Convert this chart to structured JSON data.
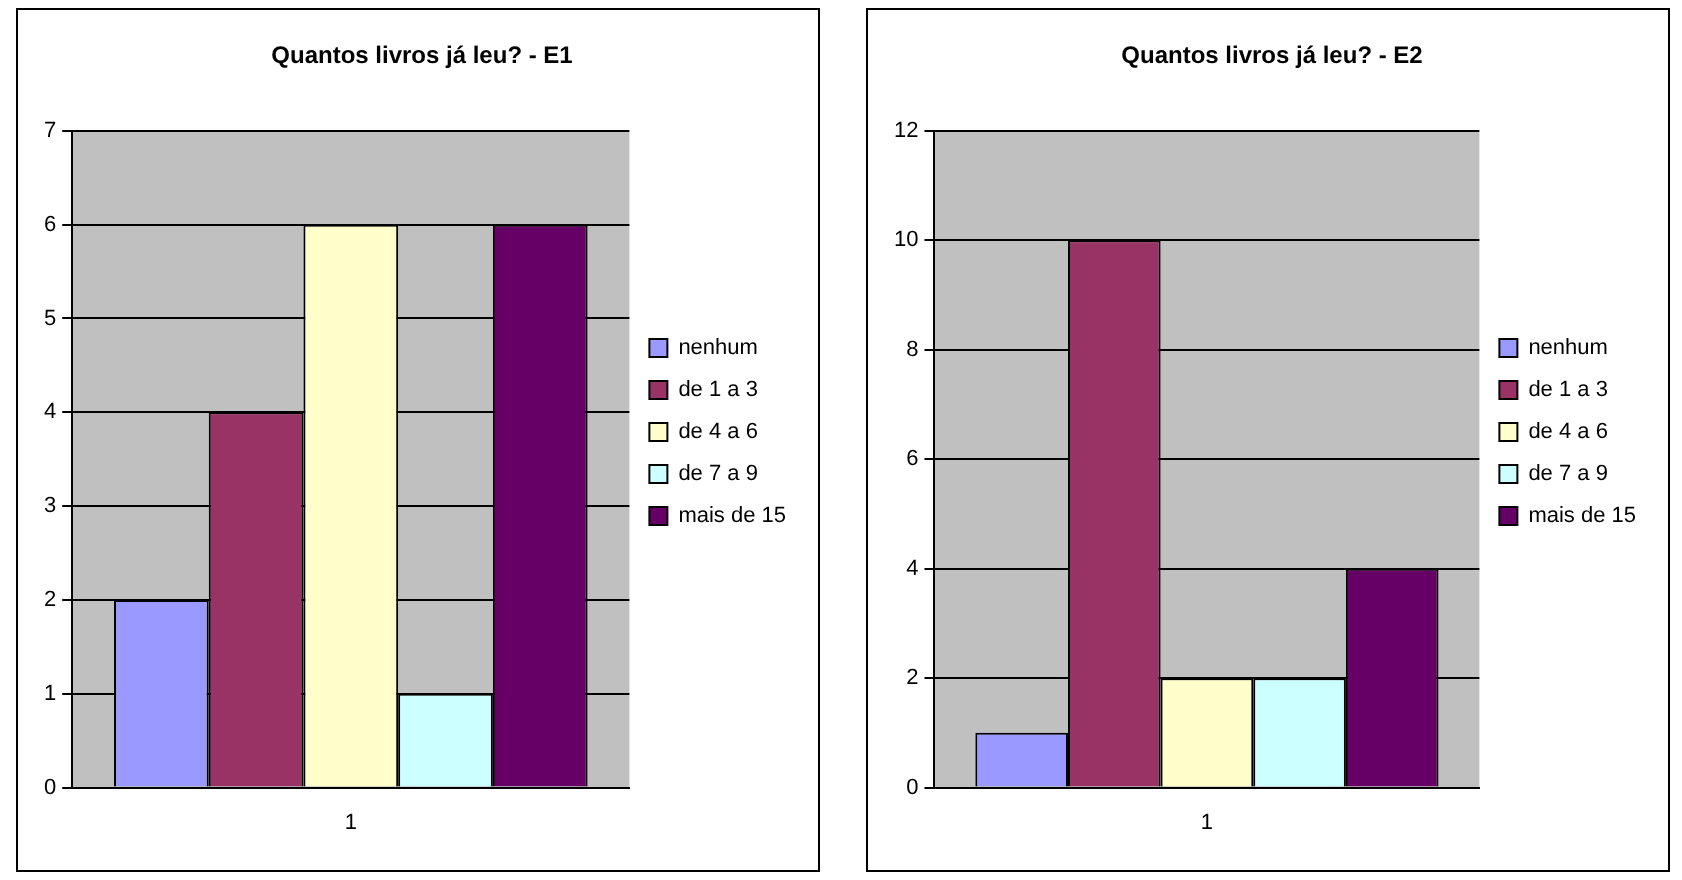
{
  "chart_data": [
    {
      "type": "bar",
      "title": "Quantos livros já leu? - E1",
      "categories": [
        "1"
      ],
      "series": [
        {
          "name": "nenhum",
          "color": "#9999ff",
          "values": [
            2
          ]
        },
        {
          "name": "de 1 a 3",
          "color": "#993366",
          "values": [
            4
          ]
        },
        {
          "name": "de 4 a 6",
          "color": "#ffffcc",
          "values": [
            6
          ]
        },
        {
          "name": "de 7 a 9",
          "color": "#ccffff",
          "values": [
            1
          ]
        },
        {
          "name": "mais de 15",
          "color": "#660066",
          "values": [
            6
          ]
        }
      ],
      "ylim": [
        0,
        7
      ],
      "yticks": [
        0,
        1,
        2,
        3,
        4,
        5,
        6,
        7
      ],
      "grid": "y",
      "legend": "right"
    },
    {
      "type": "bar",
      "title": "Quantos livros já leu? - E2",
      "categories": [
        "1"
      ],
      "series": [
        {
          "name": "nenhum",
          "color": "#9999ff",
          "values": [
            1
          ]
        },
        {
          "name": "de 1 a 3",
          "color": "#993366",
          "values": [
            10
          ]
        },
        {
          "name": "de 4 a 6",
          "color": "#ffffcc",
          "values": [
            2
          ]
        },
        {
          "name": "de 7 a 9",
          "color": "#ccffff",
          "values": [
            2
          ]
        },
        {
          "name": "mais de 15",
          "color": "#660066",
          "values": [
            4
          ]
        }
      ],
      "ylim": [
        0,
        12
      ],
      "yticks": [
        0,
        2,
        4,
        6,
        8,
        10,
        12
      ],
      "grid": "y",
      "legend": "right"
    }
  ]
}
